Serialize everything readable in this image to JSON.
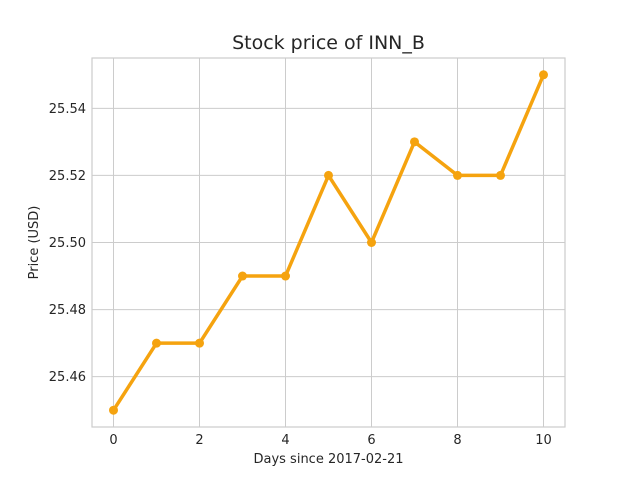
{
  "chart_data": {
    "type": "line",
    "title": "Stock price of INN_B",
    "xlabel": "Days since 2017-02-21",
    "ylabel": "Price (USD)",
    "x": [
      0,
      1,
      2,
      3,
      4,
      5,
      6,
      7,
      8,
      9,
      10
    ],
    "series": [
      {
        "values": [
          25.45,
          25.47,
          25.47,
          25.49,
          25.49,
          25.52,
          25.5,
          25.53,
          25.52,
          25.52,
          25.55
        ],
        "color": "#f5a30f"
      }
    ],
    "xlim": [
      -0.5,
      10.5
    ],
    "ylim": [
      25.445,
      25.555
    ],
    "xticks": [
      0,
      2,
      4,
      6,
      8,
      10
    ],
    "yticks": [
      25.46,
      25.48,
      25.5,
      25.52,
      25.54
    ],
    "xtick_labels": [
      "0",
      "2",
      "4",
      "6",
      "8",
      "10"
    ],
    "ytick_labels": [
      "25.46",
      "25.48",
      "25.50",
      "25.52",
      "25.54"
    ],
    "grid": true,
    "legend": false
  }
}
